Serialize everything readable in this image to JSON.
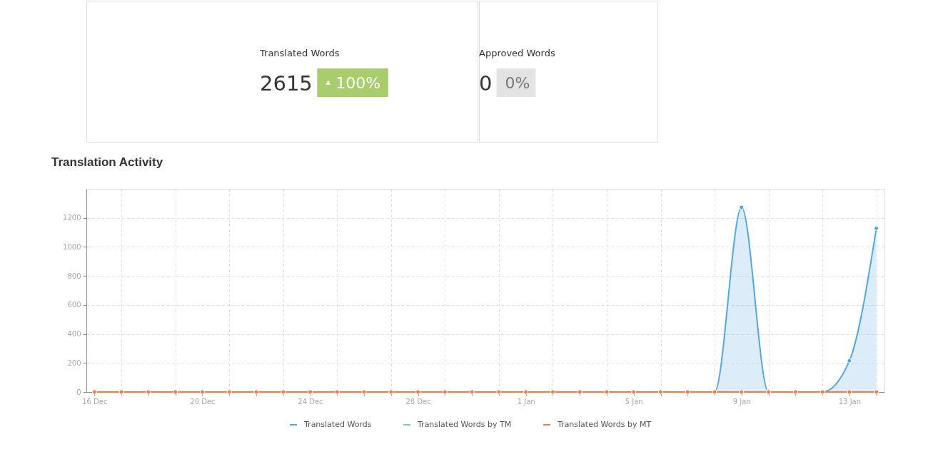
{
  "chart_data": [
    {
      "type": "other",
      "title": "Translated Words",
      "annotations": [
        "2615",
        "▲ 100%"
      ],
      "color": "#a9cd6d"
    },
    {
      "type": "other",
      "title": "Approved Words",
      "annotations": [
        "0",
        "0%"
      ],
      "color": "#e3e3e3"
    },
    {
      "type": "line",
      "title": "Translation Activity",
      "categories": [
        "16 Dec",
        null,
        null,
        null,
        "20 Dec",
        null,
        null,
        null,
        "24 Dec",
        null,
        null,
        null,
        "28 Dec",
        null,
        null,
        null,
        "1 Jan",
        null,
        null,
        null,
        "5 Jan",
        null,
        null,
        null,
        "9 Jan",
        null,
        null,
        null,
        "13 Jan",
        null
      ],
      "ylim": [
        0,
        1400
      ],
      "yticks": [
        0,
        200,
        400,
        600,
        800,
        1000,
        1200
      ],
      "grid": true,
      "legend": "bottom",
      "marker": "circle",
      "series": [
        {
          "name": "Translated Words",
          "type": "area",
          "color": "#52a7e0",
          "values": [
            0,
            0,
            0,
            0,
            0,
            0,
            0,
            0,
            0,
            0,
            0,
            0,
            0,
            0,
            0,
            0,
            0,
            0,
            0,
            0,
            0,
            0,
            0,
            0,
            1272,
            0,
            0,
            0,
            215,
            1128
          ]
        },
        {
          "name": "Translated Words by TM",
          "color": "#7dcea0",
          "values": [
            null,
            null,
            null,
            null,
            null,
            null,
            null,
            null,
            null,
            null,
            null,
            null,
            null,
            null,
            null,
            null,
            null,
            null,
            null,
            null,
            null,
            null,
            null,
            null,
            null,
            null,
            null,
            null,
            null,
            null
          ]
        },
        {
          "name": "Translated Words by MT",
          "color": "#f07a45",
          "values": [
            0,
            0,
            0,
            0,
            0,
            0,
            0,
            0,
            0,
            0,
            0,
            0,
            0,
            0,
            0,
            0,
            0,
            0,
            0,
            0,
            0,
            0,
            0,
            0,
            0,
            0,
            0,
            0,
            0,
            0
          ]
        }
      ]
    }
  ]
}
